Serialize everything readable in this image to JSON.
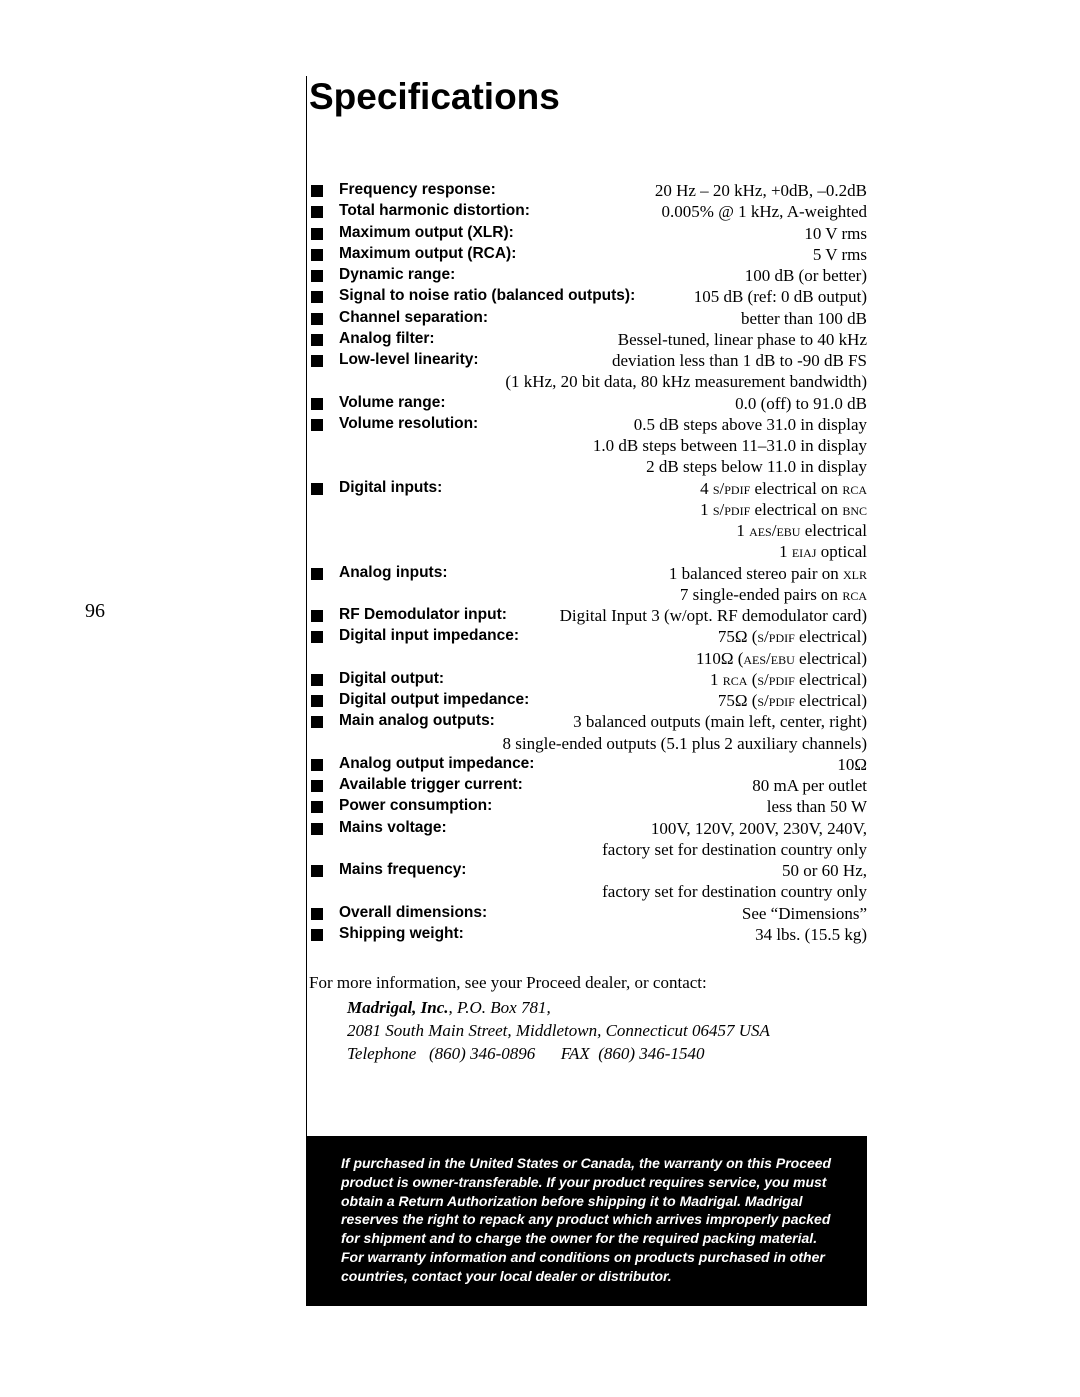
{
  "page_number": "96",
  "title": "Specifications",
  "specs": [
    {
      "bullet": true,
      "label": "Frequency response:",
      "value": "20 Hz – 20 kHz, +0dB, –0.2dB"
    },
    {
      "bullet": true,
      "label": "Total harmonic distortion:",
      "value": "0.005% @ 1 kHz, A-weighted"
    },
    {
      "bullet": true,
      "label": "Maximum output (XLR):",
      "value": "10 V rms"
    },
    {
      "bullet": true,
      "label": "Maximum output (RCA):",
      "value": "5 V rms"
    },
    {
      "bullet": true,
      "label": "Dynamic range:",
      "value": "100 dB (or better)"
    },
    {
      "bullet": true,
      "label": "Signal to noise ratio (balanced outputs):",
      "value": "105 dB (ref: 0 dB output)"
    },
    {
      "bullet": true,
      "label": "Channel separation:",
      "value": "better than 100 dB"
    },
    {
      "bullet": true,
      "label": "Analog filter:",
      "value": "Bessel-tuned, linear phase to 40 kHz"
    },
    {
      "bullet": true,
      "label": "Low-level linearity:",
      "value": "deviation less than 1 dB to -90 dB FS"
    },
    {
      "bullet": false,
      "label": "",
      "value": "(1 kHz, 20 bit data, 80 kHz measurement bandwidth)"
    },
    {
      "bullet": true,
      "label": "Volume range:",
      "value": "0.0 (off) to 91.0 dB"
    },
    {
      "bullet": true,
      "label": "Volume resolution:",
      "value": "0.5 dB steps above 31.0 in display"
    },
    {
      "bullet": false,
      "label": "",
      "value": "1.0 dB steps between 11–31.0 in display"
    },
    {
      "bullet": false,
      "label": "",
      "value": "2 dB steps below 11.0 in display"
    },
    {
      "bullet": true,
      "label": "Digital inputs:",
      "value_html": "4 <span class='sc'>s/pdif</span> electrical on <span class='sc'>rca</span>"
    },
    {
      "bullet": false,
      "label": "",
      "value_html": "1 <span class='sc'>s/pdif</span> electrical on <span class='sc'>bnc</span>"
    },
    {
      "bullet": false,
      "label": "",
      "value_html": "1 <span class='sc'>aes/ebu</span> electrical"
    },
    {
      "bullet": false,
      "label": "",
      "value_html": "1 <span class='sc'>eiaj</span> optical"
    },
    {
      "bullet": true,
      "label": "Analog inputs:",
      "value_html": "1 balanced stereo pair on <span class='sc'>xlr</span>"
    },
    {
      "bullet": false,
      "label": "",
      "value_html": "7 single-ended pairs on <span class='sc'>rca</span>"
    },
    {
      "bullet": true,
      "label": "RF Demodulator input:",
      "value": "Digital Input 3 (w/opt. RF demodulator card)"
    },
    {
      "bullet": true,
      "label": "Digital input impedance:",
      "value_html": "75Ω (<span class='sc'>s/pdif</span> electrical)"
    },
    {
      "bullet": false,
      "label": "",
      "value_html": "110Ω (<span class='sc'>aes/ebu</span> electrical)"
    },
    {
      "bullet": true,
      "label": "Digital output:",
      "value_html": "1 <span class='sc'>rca</span> (<span class='sc'>s/pdif</span> electrical)"
    },
    {
      "bullet": true,
      "label": "Digital output impedance:",
      "value_html": "75Ω (<span class='sc'>s/pdif</span> electrical)"
    },
    {
      "bullet": true,
      "label": "Main analog outputs:",
      "value": "3 balanced outputs (main left, center, right)"
    },
    {
      "bullet": false,
      "label": "",
      "value": "8 single-ended outputs (5.1 plus 2 auxiliary channels)"
    },
    {
      "bullet": true,
      "label": "Analog output impedance:",
      "value": "10Ω"
    },
    {
      "bullet": true,
      "label": "Available trigger current:",
      "value": "80 mA per outlet"
    },
    {
      "bullet": true,
      "label": "Power consumption:",
      "value": "less than 50 W"
    },
    {
      "bullet": true,
      "label": "Mains voltage:",
      "value": "100V, 120V, 200V, 230V, 240V,"
    },
    {
      "bullet": false,
      "label": "",
      "value": "factory set for destination country only"
    },
    {
      "bullet": true,
      "label": "Mains frequency:",
      "value": "50 or 60 Hz,"
    },
    {
      "bullet": false,
      "label": "",
      "value": "factory set for destination country only"
    },
    {
      "bullet": true,
      "label": "Overall dimensions:",
      "value": "See “Dimensions”"
    },
    {
      "bullet": true,
      "label": "Shipping weight:",
      "value": "34 lbs. (15.5 kg)"
    }
  ],
  "contact": {
    "lead": "For more information, see your Proceed dealer, or contact:",
    "company": "Madrigal, Inc.",
    "pobox": ", P.O. Box 781,",
    "address": "2081 South Main Street, Middletown, Connecticut 06457 USA",
    "phone_label": "Telephone",
    "phone": "(860) 346-0896",
    "fax_label": "FAX",
    "fax": "(860) 346-1540"
  },
  "warranty": "If purchased in the United States or Canada, the warranty on this Proceed product is owner-transferable. If your product requires service, you must obtain a Return Authorization before shipping it to Madrigal. Madrigal reserves the right to repack any product which arrives improperly packed for shipment and to charge the owner for the required packing material. For warranty information and conditions on products purchased in other countries, contact your local dealer or distributor."
}
